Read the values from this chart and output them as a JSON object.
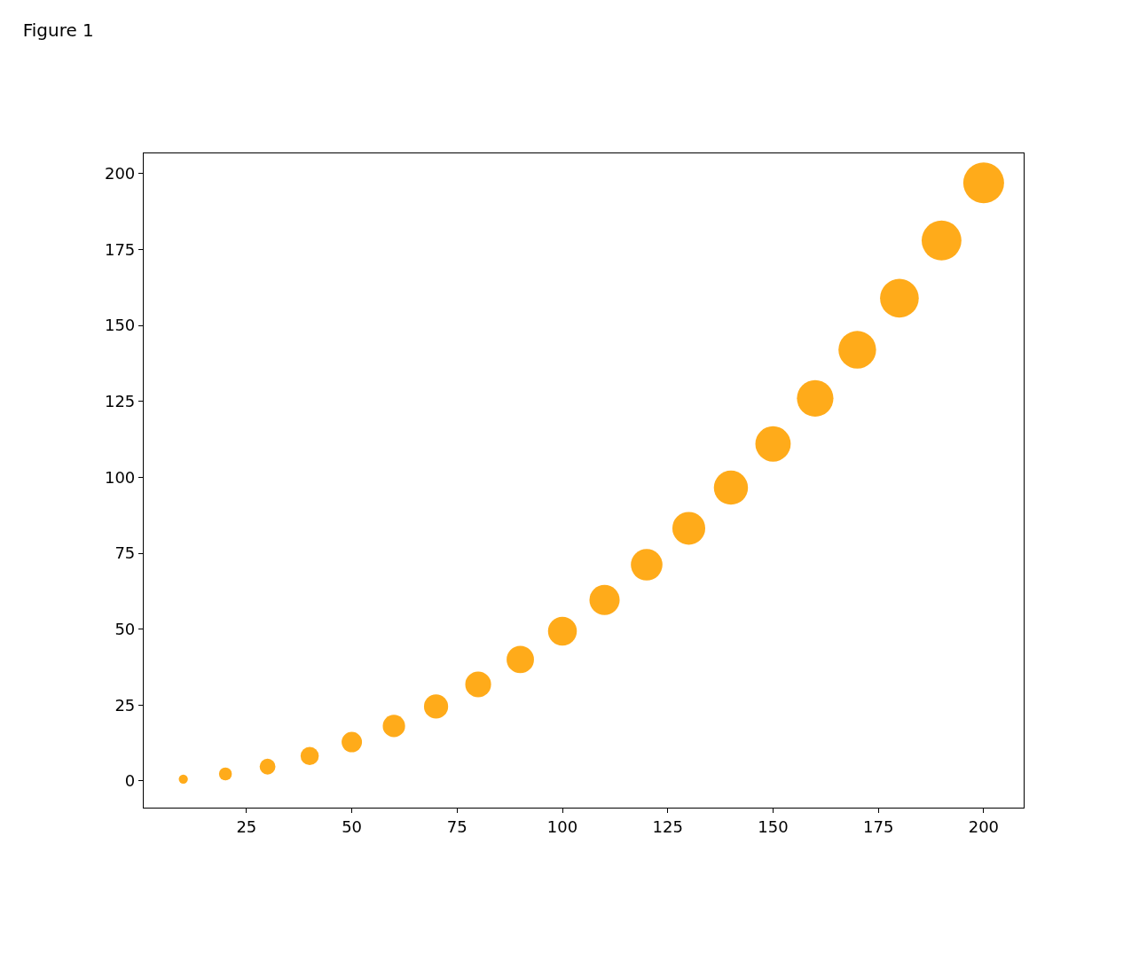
{
  "chart_data": {
    "type": "bubble",
    "title": "Figure 1",
    "x": [
      10,
      20,
      30,
      40,
      50,
      60,
      70,
      80,
      90,
      100,
      110,
      120,
      130,
      140,
      150,
      160,
      170,
      180,
      190,
      200
    ],
    "values": [
      0.6,
      2.3,
      4.7,
      8.2,
      12.8,
      18.1,
      24.5,
      31.8,
      40,
      49.3,
      59.6,
      71.2,
      83.2,
      96.6,
      111,
      126,
      142,
      159,
      178,
      197
    ],
    "sizes": [
      0.05,
      0.1,
      0.15,
      0.2,
      0.25,
      0.3,
      0.35,
      0.4,
      0.45,
      0.5,
      0.55,
      0.6,
      0.65,
      0.7,
      0.75,
      0.8,
      0.85,
      0.9,
      0.95,
      1
    ],
    "color": "#ffab1a",
    "xlim": [
      0.6,
      209.5
    ],
    "xticks": [
      25,
      50,
      75,
      100,
      125,
      150,
      175,
      200
    ],
    "ylim": [
      -8.8,
      206.7
    ],
    "yticks": [
      0,
      25,
      50,
      75,
      100,
      125,
      150,
      175,
      200
    ],
    "legend": false
  }
}
